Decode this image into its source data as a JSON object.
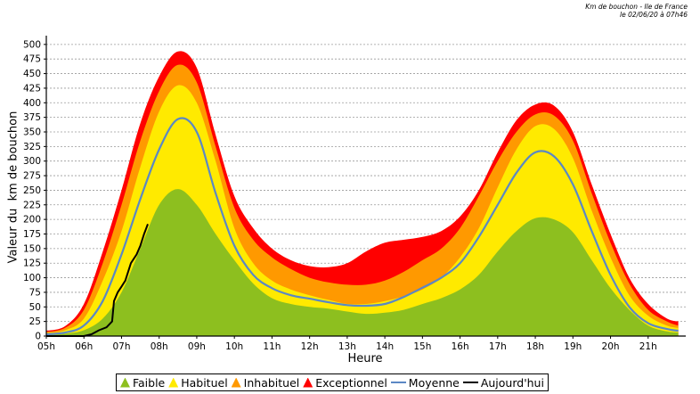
{
  "header": {
    "title_line1": "Km de bouchon - Ile de France",
    "title_line2": "le 02/06/20 à 07h46"
  },
  "legend": [
    {
      "name": "Faible",
      "color": "#8dbf1f",
      "shape": "fill"
    },
    {
      "name": "Habituel",
      "color": "#ffea00",
      "shape": "fill"
    },
    {
      "name": "Inhabituel",
      "color": "#ff9900",
      "shape": "fill"
    },
    {
      "name": "Exceptionnel",
      "color": "#ff0000",
      "shape": "fill"
    },
    {
      "name": "Moyenne",
      "color": "#5b88c4",
      "shape": "line"
    },
    {
      "name": "Aujourd'hui",
      "color": "#000000",
      "shape": "line"
    }
  ],
  "chart_data": {
    "type": "area",
    "title": "Km de bouchon - Ile de France",
    "subtitle": "le 02/06/20 à 07h46",
    "xlabel": "Heure",
    "ylabel": "Valeur du  km de bouchon",
    "xlim": [
      5,
      22
    ],
    "ylim": [
      0,
      512
    ],
    "grid": true,
    "legend_position": "bottom",
    "x_ticks": [
      "05h",
      "06h",
      "07h",
      "08h",
      "09h",
      "10h",
      "11h",
      "12h",
      "13h",
      "14h",
      "15h",
      "16h",
      "17h",
      "18h",
      "19h",
      "20h",
      "21h"
    ],
    "y_ticks": [
      0,
      25,
      50,
      75,
      100,
      125,
      150,
      175,
      200,
      225,
      250,
      275,
      300,
      325,
      350,
      375,
      400,
      425,
      450,
      475,
      500
    ],
    "x": [
      5,
      5.5,
      6,
      6.5,
      7,
      7.5,
      8,
      8.5,
      9,
      9.5,
      10,
      10.5,
      11,
      11.5,
      12,
      12.5,
      13,
      13.5,
      14,
      14.5,
      15,
      15.5,
      16,
      16.5,
      17,
      17.5,
      18,
      18.5,
      19,
      19.5,
      20,
      20.5,
      21,
      21.5,
      21.8
    ],
    "series": [
      {
        "name": "Faible",
        "color": "#8dbf1f",
        "values": [
          2,
          4,
          10,
          30,
          75,
          150,
          225,
          252,
          225,
          175,
          130,
          90,
          65,
          55,
          50,
          47,
          42,
          38,
          40,
          45,
          55,
          65,
          80,
          105,
          145,
          180,
          202,
          200,
          178,
          130,
          82,
          45,
          18,
          8,
          6
        ]
      },
      {
        "name": "Habituel",
        "color": "#ffea00",
        "values": [
          5,
          10,
          30,
          95,
          180,
          290,
          385,
          430,
          400,
          300,
          185,
          125,
          95,
          80,
          70,
          62,
          55,
          55,
          60,
          68,
          80,
          100,
          135,
          185,
          255,
          320,
          360,
          355,
          305,
          215,
          135,
          70,
          35,
          18,
          14
        ]
      },
      {
        "name": "Inhabituel",
        "color": "#ff9900",
        "values": [
          7,
          14,
          45,
          125,
          225,
          335,
          420,
          465,
          435,
          325,
          220,
          165,
          135,
          115,
          100,
          92,
          88,
          88,
          95,
          110,
          130,
          150,
          185,
          240,
          300,
          350,
          380,
          378,
          335,
          245,
          160,
          90,
          45,
          25,
          18
        ]
      },
      {
        "name": "Exceptionnel",
        "color": "#ff0000",
        "values": [
          9,
          17,
          55,
          145,
          250,
          365,
          445,
          488,
          460,
          345,
          240,
          185,
          150,
          130,
          120,
          118,
          125,
          145,
          160,
          165,
          170,
          180,
          205,
          250,
          315,
          370,
          397,
          395,
          350,
          260,
          175,
          100,
          55,
          30,
          25
        ]
      },
      {
        "name": "Moyenne",
        "color": "#5b88c4",
        "values": [
          3,
          6,
          18,
          60,
          140,
          235,
          320,
          372,
          350,
          245,
          155,
          105,
          82,
          70,
          64,
          58,
          53,
          52,
          55,
          67,
          83,
          100,
          125,
          170,
          225,
          280,
          315,
          308,
          260,
          180,
          105,
          50,
          22,
          12,
          9
        ]
      },
      {
        "name": "Aujourd'hui",
        "color": "#000000",
        "x": [
          5,
          5.5,
          6,
          6.2,
          6.4,
          6.6,
          6.75,
          6.8,
          6.9,
          7,
          7.1,
          7.25,
          7.4,
          7.5,
          7.6,
          7.7
        ],
        "values": [
          0,
          0,
          0,
          3,
          10,
          15,
          25,
          60,
          75,
          85,
          95,
          125,
          140,
          155,
          175,
          192
        ]
      }
    ]
  }
}
